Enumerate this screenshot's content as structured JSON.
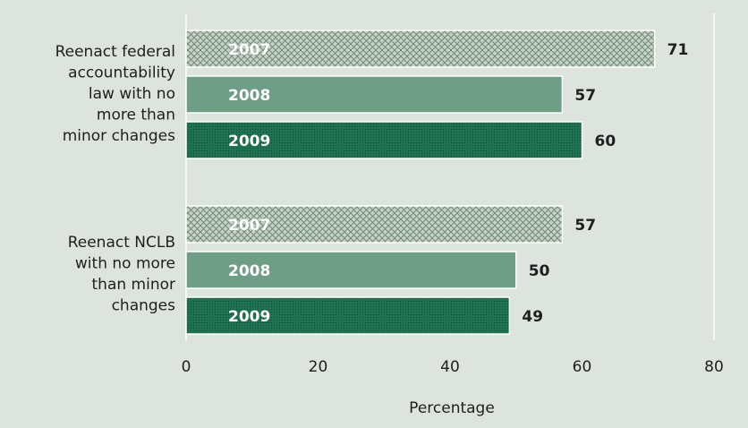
{
  "chart_data": {
    "type": "bar",
    "orientation": "horizontal",
    "categories": [
      "Reenact federal accountability law with no more than minor changes",
      "Reenact NCLB with no more than minor changes"
    ],
    "category_lines": [
      [
        "Reenact federal",
        "accountability",
        "law with no",
        "more than",
        "minor changes"
      ],
      [
        "Reenact NCLB",
        "with no more",
        "than minor",
        "changes"
      ]
    ],
    "series": [
      {
        "name": "2007",
        "values": [
          71,
          57
        ],
        "color": "#bfcbbf",
        "pattern": "crosshatch"
      },
      {
        "name": "2008",
        "values": [
          57,
          50
        ],
        "color": "#6f9e86",
        "pattern": "solid"
      },
      {
        "name": "2009",
        "values": [
          60,
          49
        ],
        "color": "#1c6e4c",
        "pattern": "dotted"
      }
    ],
    "xlabel": "Percentage",
    "xlim": [
      0,
      80
    ],
    "xticks": [
      0,
      20,
      40,
      60,
      80
    ],
    "grid": false
  }
}
